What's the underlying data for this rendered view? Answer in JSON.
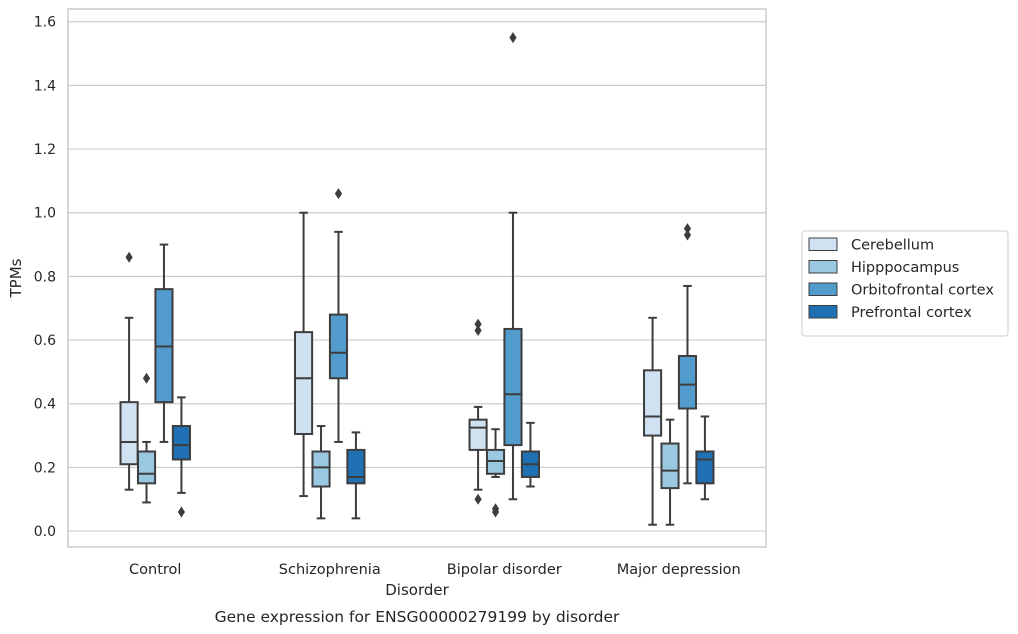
{
  "chart_data": {
    "type": "boxplot",
    "caption": "Gene expression for ENSG00000279199 by disorder",
    "xlabel": "Disorder",
    "ylabel": "TPMs",
    "ylim": [
      -0.05,
      1.64
    ],
    "yticks": [
      0.0,
      0.2,
      0.4,
      0.6,
      0.8,
      1.0,
      1.2,
      1.4,
      1.6
    ],
    "ytick_labels": [
      "0.0",
      "0.2",
      "0.4",
      "0.6",
      "0.8",
      "1.0",
      "1.2",
      "1.4",
      "1.6"
    ],
    "grid": "horizontal",
    "legend_position": "right",
    "categories": [
      "Control",
      "Schizophrenia",
      "Bipolar disorder",
      "Major depression"
    ],
    "series": [
      {
        "name": "Cerebellum",
        "color": "#d0e1f2",
        "boxes": [
          {
            "whislo": 0.13,
            "q1": 0.21,
            "med": 0.28,
            "q3": 0.405,
            "whishi": 0.67,
            "fliers": [
              0.86
            ]
          },
          {
            "whislo": 0.11,
            "q1": 0.305,
            "med": 0.48,
            "q3": 0.625,
            "whishi": 1.0,
            "fliers": []
          },
          {
            "whislo": 0.13,
            "q1": 0.255,
            "med": 0.325,
            "q3": 0.35,
            "whishi": 0.39,
            "fliers": [
              0.63,
              0.65,
              0.1
            ]
          },
          {
            "whislo": 0.02,
            "q1": 0.3,
            "med": 0.36,
            "q3": 0.505,
            "whishi": 0.67,
            "fliers": []
          }
        ]
      },
      {
        "name": "Hipppocampus",
        "color": "#9ac8e0",
        "boxes": [
          {
            "whislo": 0.09,
            "q1": 0.15,
            "med": 0.18,
            "q3": 0.25,
            "whishi": 0.28,
            "fliers": [
              0.48
            ]
          },
          {
            "whislo": 0.04,
            "q1": 0.14,
            "med": 0.2,
            "q3": 0.25,
            "whishi": 0.33,
            "fliers": []
          },
          {
            "whislo": 0.17,
            "q1": 0.18,
            "med": 0.22,
            "q3": 0.255,
            "whishi": 0.32,
            "fliers": [
              0.07,
              0.06
            ]
          },
          {
            "whislo": 0.02,
            "q1": 0.135,
            "med": 0.19,
            "q3": 0.275,
            "whishi": 0.35,
            "fliers": []
          }
        ]
      },
      {
        "name": "Orbitofrontal cortex",
        "color": "#519ccc",
        "boxes": [
          {
            "whislo": 0.28,
            "q1": 0.405,
            "med": 0.58,
            "q3": 0.76,
            "whishi": 0.9,
            "fliers": []
          },
          {
            "whislo": 0.28,
            "q1": 0.48,
            "med": 0.56,
            "q3": 0.68,
            "whishi": 0.94,
            "fliers": [
              1.06
            ]
          },
          {
            "whislo": 0.1,
            "q1": 0.27,
            "med": 0.43,
            "q3": 0.635,
            "whishi": 1.0,
            "fliers": [
              1.55
            ]
          },
          {
            "whislo": 0.15,
            "q1": 0.385,
            "med": 0.46,
            "q3": 0.55,
            "whishi": 0.77,
            "fliers": [
              0.95,
              0.93
            ]
          }
        ]
      },
      {
        "name": "Prefrontal cortex",
        "color": "#2070b4",
        "boxes": [
          {
            "whislo": 0.12,
            "q1": 0.225,
            "med": 0.27,
            "q3": 0.33,
            "whishi": 0.42,
            "fliers": [
              0.06
            ]
          },
          {
            "whislo": 0.04,
            "q1": 0.15,
            "med": 0.17,
            "q3": 0.255,
            "whishi": 0.31,
            "fliers": []
          },
          {
            "whislo": 0.14,
            "q1": 0.17,
            "med": 0.21,
            "q3": 0.25,
            "whishi": 0.34,
            "fliers": []
          },
          {
            "whislo": 0.1,
            "q1": 0.15,
            "med": 0.225,
            "q3": 0.25,
            "whishi": 0.36,
            "fliers": []
          }
        ]
      }
    ]
  }
}
